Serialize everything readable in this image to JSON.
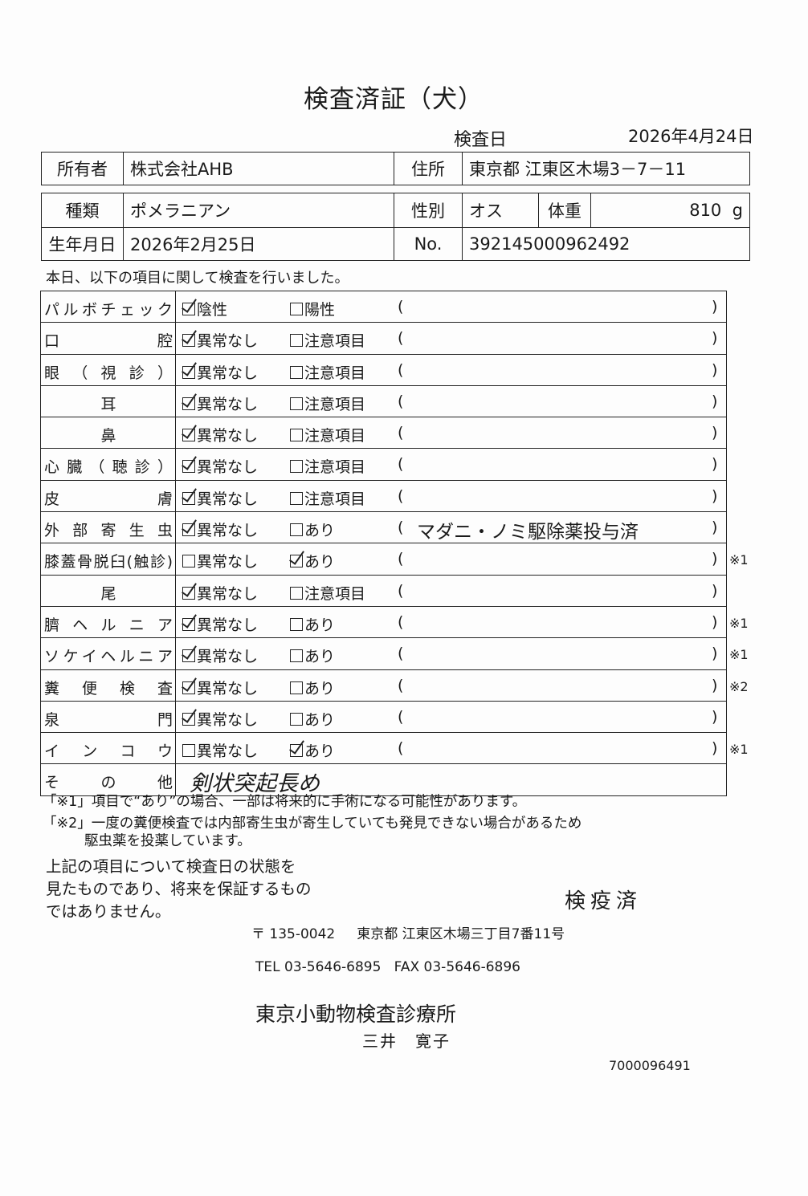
{
  "title": "検査済証（犬）",
  "exam_date": {
    "label": "検査日",
    "value": "2026年4月24日"
  },
  "owner": {
    "label": "所有者",
    "value": "株式会社AHB",
    "address_label": "住所",
    "address": "東京都 江東区木場3－7－11"
  },
  "pet": {
    "breed_label": "種類",
    "breed": "ポメラニアン",
    "sex_label": "性別",
    "sex": "オス",
    "weight_label": "体重",
    "weight": "810",
    "weight_unit": "g",
    "birth_label": "生年月日",
    "birth": "2026年2月25日",
    "no_label": "No.",
    "no": "392145000962492"
  },
  "intro": "本日、以下の項目に関して検査を行いました。",
  "items": [
    {
      "label": "パルボチェック",
      "opt1": "陰性",
      "opt2": "陽性",
      "checked": 1,
      "note": "",
      "mark": ""
    },
    {
      "label": "口腔",
      "opt1": "異常なし",
      "opt2": "注意項目",
      "checked": 1,
      "note": "",
      "mark": ""
    },
    {
      "label": "眼（視診）",
      "opt1": "異常なし",
      "opt2": "注意項目",
      "checked": 1,
      "note": "",
      "mark": ""
    },
    {
      "label": "耳",
      "opt1": "異常なし",
      "opt2": "注意項目",
      "checked": 1,
      "note": "",
      "mark": "",
      "center": true
    },
    {
      "label": "鼻",
      "opt1": "異常なし",
      "opt2": "注意項目",
      "checked": 1,
      "note": "",
      "mark": "",
      "center": true
    },
    {
      "label": "心臓（聴診）",
      "opt1": "異常なし",
      "opt2": "注意項目",
      "checked": 1,
      "note": "",
      "mark": ""
    },
    {
      "label": "皮膚",
      "opt1": "異常なし",
      "opt2": "注意項目",
      "checked": 1,
      "note": "",
      "mark": ""
    },
    {
      "label": "外部寄生虫",
      "opt1": "異常なし",
      "opt2": "あり",
      "checked": 1,
      "note": "マダニ・ノミ駆除薬投与済",
      "mark": ""
    },
    {
      "label": "膝蓋骨脱臼(触診)",
      "opt1": "異常なし",
      "opt2": "あり",
      "checked": 2,
      "note": "",
      "mark": "※1"
    },
    {
      "label": "尾",
      "opt1": "異常なし",
      "opt2": "注意項目",
      "checked": 1,
      "note": "",
      "mark": "",
      "center": true
    },
    {
      "label": "臍ヘルニア",
      "opt1": "異常なし",
      "opt2": "あり",
      "checked": 1,
      "note": "",
      "mark": "※1"
    },
    {
      "label": "ソケイヘルニア",
      "opt1": "異常なし",
      "opt2": "あり",
      "checked": 1,
      "note": "",
      "mark": "※1"
    },
    {
      "label": "糞便検査",
      "opt1": "異常なし",
      "opt2": "あり",
      "checked": 1,
      "note": "",
      "mark": "※2"
    },
    {
      "label": "泉門",
      "opt1": "異常なし",
      "opt2": "あり",
      "checked": 1,
      "note": "",
      "mark": ""
    },
    {
      "label": "インコウ",
      "opt1": "異常なし",
      "opt2": "あり",
      "checked": 2,
      "note": "",
      "mark": "※1"
    }
  ],
  "other": {
    "label": "その他",
    "value": "剣状突起長め"
  },
  "footnotes": [
    "「※1」項目で“あり”の場合、一部は将来的に手術になる可能性があります。",
    "「※2」一度の糞便検査では内部寄生虫が寄生していても発見できない場合があるため",
    "駆虫薬を投薬しています。"
  ],
  "disclaimer": "上記の項目について検査日の状態を\n見たものであり、将来を保証するもの\nではありません。",
  "stamp": "検疫済",
  "clinic": {
    "postal": "〒 135-0042",
    "address": "東京都 江東区木場三丁目7番11号",
    "tel": "TEL 03-5646-6895",
    "fax": "FAX 03-5646-6896",
    "name": "東京小動物検査診療所",
    "person": "三井　寛子"
  },
  "serial": "7000096491"
}
